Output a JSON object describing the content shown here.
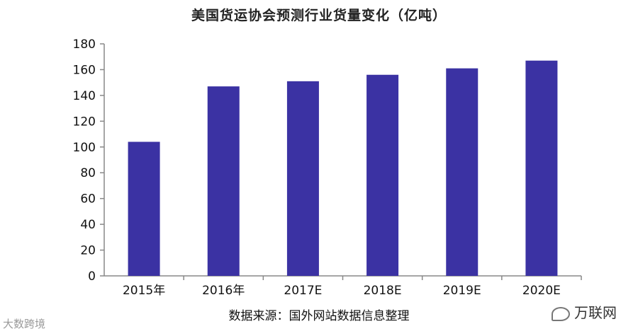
{
  "chart_data": {
    "type": "bar",
    "title": "美国货运协会预测行业货量变化（亿吨）",
    "categories": [
      "2015年",
      "2016年",
      "2017E",
      "2018E",
      "2019E",
      "2020E"
    ],
    "values": [
      104,
      147,
      151,
      156,
      161,
      167
    ],
    "ylim": [
      0,
      180
    ],
    "yticks": [
      0,
      20,
      40,
      60,
      80,
      100,
      120,
      140,
      160,
      180
    ],
    "xlabel": "",
    "ylabel": "",
    "grid": false,
    "bar_color": "#3b32a3"
  },
  "source_note": "数据来源：国外网站数据信息整理",
  "watermarks": {
    "left_text": "大数跨境",
    "right_text": "万联网"
  }
}
